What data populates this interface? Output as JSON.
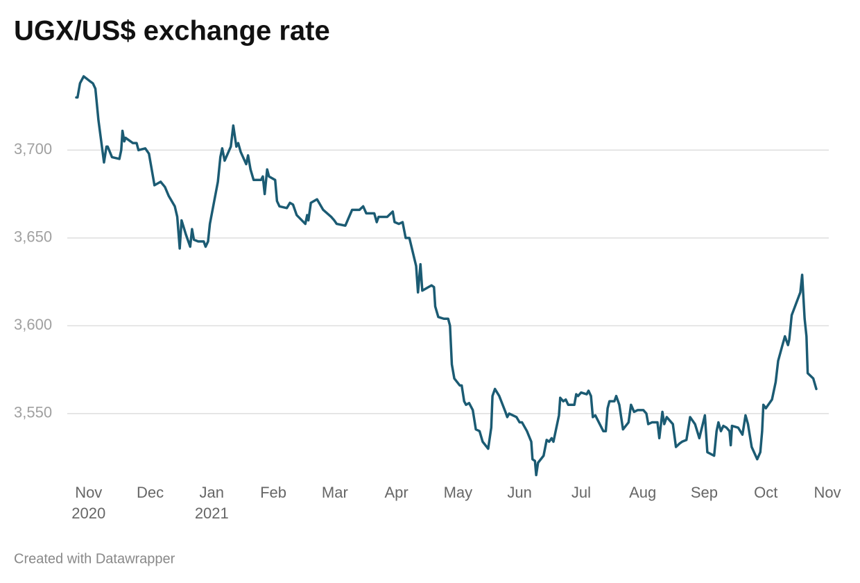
{
  "chart_data": {
    "type": "line",
    "title": "UGX/US$ exchange rate",
    "footer": "Created with Datawrapper",
    "color": "#1b5b73",
    "grid": true,
    "ylim": [
      3514,
      3742
    ],
    "yticks": [
      {
        "value": 3550,
        "label": "3,550"
      },
      {
        "value": 3600,
        "label": "3,600"
      },
      {
        "value": 3650,
        "label": "3,650"
      },
      {
        "value": 3700,
        "label": "3,700"
      }
    ],
    "xlim": [
      -0.2,
      12
    ],
    "xticks": [
      {
        "value": 0,
        "label": "Nov",
        "year": "2020"
      },
      {
        "value": 1,
        "label": "Dec"
      },
      {
        "value": 2,
        "label": "Jan",
        "year": "2021"
      },
      {
        "value": 3,
        "label": "Feb"
      },
      {
        "value": 4,
        "label": "Mar"
      },
      {
        "value": 5,
        "label": "Apr"
      },
      {
        "value": 6,
        "label": "May"
      },
      {
        "value": 7,
        "label": "Jun"
      },
      {
        "value": 8,
        "label": "Jul"
      },
      {
        "value": 9,
        "label": "Aug"
      },
      {
        "value": 10,
        "label": "Sep"
      },
      {
        "value": 11,
        "label": "Oct"
      },
      {
        "value": 12,
        "label": "Nov"
      }
    ],
    "x": [
      -0.2,
      -0.18,
      -0.14,
      -0.08,
      0.03,
      0.07,
      0.11,
      0.16,
      0.25,
      0.29,
      0.31,
      0.38,
      0.5,
      0.53,
      0.55,
      0.58,
      0.6,
      0.72,
      0.78,
      0.81,
      0.92,
      0.98,
      1.04,
      1.07,
      1.17,
      1.24,
      1.3,
      1.4,
      1.44,
      1.48,
      1.51,
      1.58,
      1.65,
      1.68,
      1.71,
      1.78,
      1.87,
      1.9,
      1.94,
      1.97,
      2.1,
      2.14,
      2.17,
      2.21,
      2.31,
      2.35,
      2.4,
      2.43,
      2.47,
      2.56,
      2.59,
      2.63,
      2.68,
      2.8,
      2.83,
      2.86,
      2.9,
      2.93,
      3.03,
      3.06,
      3.1,
      3.22,
      3.27,
      3.32,
      3.38,
      3.52,
      3.55,
      3.57,
      3.61,
      3.71,
      3.81,
      3.94,
      3.99,
      4.03,
      4.17,
      4.28,
      4.4,
      4.46,
      4.51,
      4.64,
      4.68,
      4.71,
      4.85,
      4.91,
      4.94,
      4.97,
      5.04,
      5.1,
      5.15,
      5.21,
      5.32,
      5.35,
      5.39,
      5.42,
      5.57,
      5.61,
      5.63,
      5.68,
      5.77,
      5.84,
      5.87,
      5.9,
      5.94,
      6.03,
      6.06,
      6.1,
      6.13,
      6.18,
      6.24,
      6.29,
      6.35,
      6.4,
      6.49,
      6.54,
      6.56,
      6.6,
      6.67,
      6.77,
      6.8,
      6.83,
      6.95,
      7.0,
      7.04,
      7.12,
      7.19,
      7.21,
      7.25,
      7.27,
      7.3,
      7.39,
      7.44,
      7.48,
      7.52,
      7.55,
      7.64,
      7.66,
      7.71,
      7.75,
      7.79,
      7.89,
      7.92,
      7.95,
      8.0,
      8.09,
      8.12,
      8.16,
      8.19,
      8.23,
      8.36,
      8.4,
      8.43,
      8.46,
      8.54,
      8.57,
      8.62,
      8.68,
      8.77,
      8.81,
      8.86,
      8.92,
      9.01,
      9.06,
      9.09,
      9.15,
      9.24,
      9.27,
      9.32,
      9.35,
      9.39,
      9.49,
      9.54,
      9.6,
      9.64,
      9.71,
      9.77,
      9.85,
      9.92,
      10.01,
      10.05,
      10.16,
      10.2,
      10.23,
      10.27,
      10.31,
      10.36,
      10.41,
      10.43,
      10.45,
      10.55,
      10.62,
      10.67,
      10.71,
      10.77,
      10.86,
      10.91,
      10.94,
      10.96,
      11.0,
      11.1,
      11.16,
      11.2,
      11.27,
      11.31,
      11.36,
      11.38,
      11.42,
      11.56,
      11.59,
      11.63,
      11.66,
      11.68,
      11.77,
      11.82
    ],
    "values": [
      3730,
      3730,
      3738,
      3742,
      3739,
      3738,
      3735,
      3717,
      3693,
      3702,
      3702,
      3696,
      3695,
      3700,
      3711,
      3705,
      3707,
      3704,
      3704,
      3700,
      3701,
      3698,
      3686,
      3680,
      3682,
      3679,
      3674,
      3668,
      3662,
      3644,
      3660,
      3652,
      3645,
      3655,
      3649,
      3648,
      3648,
      3645,
      3648,
      3658,
      3682,
      3696,
      3701,
      3694,
      3702,
      3714,
      3702,
      3704,
      3699,
      3692,
      3697,
      3689,
      3683,
      3683,
      3685,
      3675,
      3689,
      3685,
      3683,
      3671,
      3668,
      3667,
      3670,
      3669,
      3663,
      3658,
      3663,
      3660,
      3670,
      3672,
      3666,
      3662,
      3660,
      3658,
      3657,
      3666,
      3666,
      3668,
      3664,
      3664,
      3659,
      3662,
      3662,
      3664,
      3665,
      3659,
      3658,
      3659,
      3650,
      3650,
      3634,
      3619,
      3635,
      3620,
      3623,
      3622,
      3611,
      3605,
      3604,
      3604,
      3600,
      3578,
      3570,
      3566,
      3566,
      3557,
      3555,
      3556,
      3552,
      3541,
      3540,
      3534,
      3530,
      3542,
      3560,
      3564,
      3560,
      3551,
      3548,
      3550,
      3548,
      3545,
      3545,
      3540,
      3534,
      3524,
      3523,
      3515,
      3522,
      3526,
      3535,
      3534,
      3536,
      3534,
      3549,
      3559,
      3557,
      3558,
      3555,
      3555,
      3561,
      3560,
      3562,
      3561,
      3563,
      3560,
      3548,
      3549,
      3540,
      3540,
      3553,
      3557,
      3557,
      3560,
      3555,
      3541,
      3545,
      3555,
      3551,
      3552,
      3552,
      3550,
      3544,
      3545,
      3545,
      3536,
      3551,
      3544,
      3548,
      3544,
      3531,
      3533,
      3534,
      3535,
      3548,
      3544,
      3536,
      3549,
      3528,
      3526,
      3540,
      3545,
      3540,
      3543,
      3542,
      3540,
      3532,
      3543,
      3542,
      3538,
      3549,
      3544,
      3531,
      3524,
      3528,
      3540,
      3555,
      3553,
      3558,
      3568,
      3580,
      3589,
      3594,
      3589,
      3592,
      3606,
      3619,
      3629,
      3604,
      3594,
      3573,
      3570,
      3564
    ]
  }
}
